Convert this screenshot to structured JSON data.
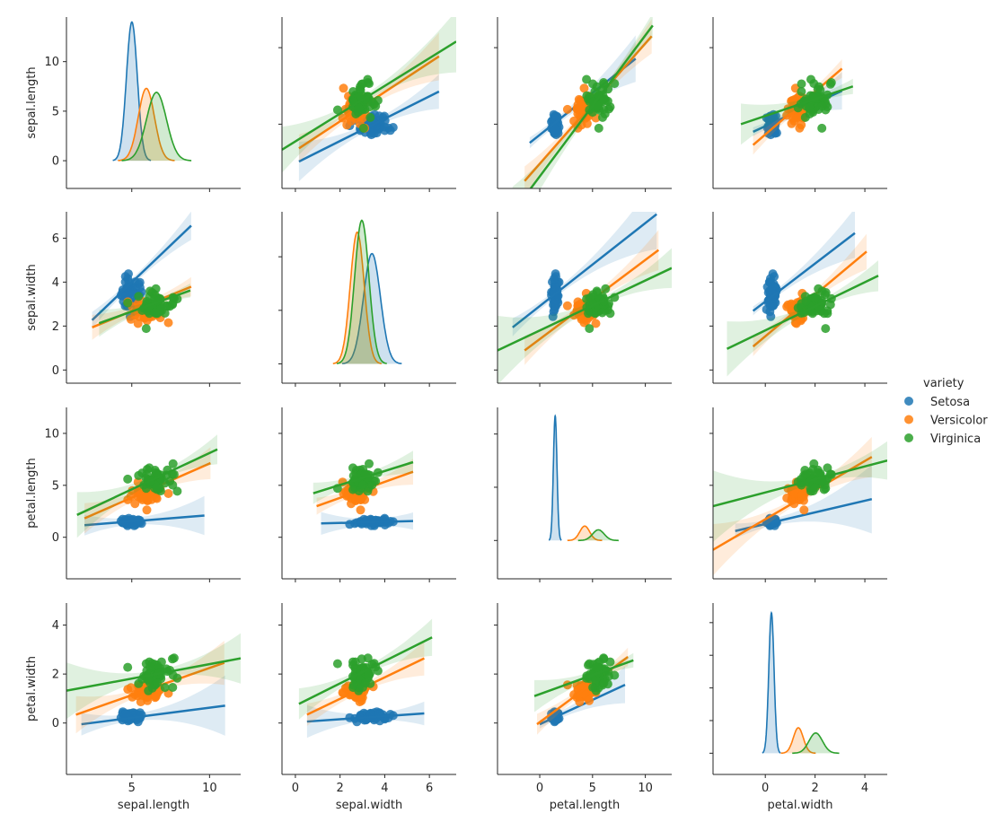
{
  "colors": {
    "Setosa": "#1f77b4",
    "Versicolor": "#ff7f0e",
    "Virginica": "#2ca02c",
    "axis": "#262626"
  },
  "chart_data": {
    "type": "scatter",
    "kind": "pairplot-regression",
    "variables": [
      "sepal.length",
      "sepal.width",
      "petal.length",
      "petal.width"
    ],
    "hue": "variety",
    "legend": {
      "title": "variety",
      "placement": "right",
      "entries": [
        "Setosa",
        "Versicolor",
        "Virginica"
      ]
    },
    "axes": {
      "sepal.length": {
        "lim": [
          0.8,
          12.0
        ],
        "ticks": [
          5,
          10
        ],
        "diag_ylim": [
          -2.8,
          14.5
        ],
        "diag_ticks": [
          0,
          5,
          10
        ]
      },
      "sepal.width": {
        "lim": [
          -0.6,
          7.2
        ],
        "ticks": [
          0,
          2,
          4,
          6
        ],
        "diag_ylim": [
          -1.8,
          14.2
        ],
        "diag_ticks": [
          0,
          5,
          10
        ]
      },
      "petal.length": {
        "lim": [
          -4.0,
          12.5
        ],
        "ticks": [
          0,
          5,
          10
        ],
        "diag_ylim": [
          -3.6,
          12.5
        ],
        "diag_ticks": [
          0,
          5,
          10
        ]
      },
      "petal.width": {
        "lim": [
          -2.1,
          4.9
        ],
        "ticks": [
          0,
          2,
          4
        ],
        "diag_ylim": [
          -0.65,
          4.6
        ],
        "diag_ticks": [
          0,
          1,
          2,
          3,
          4
        ]
      }
    },
    "species": [
      {
        "name": "Setosa",
        "mean": [
          5.006,
          3.428,
          1.462,
          0.246
        ],
        "std": [
          0.35,
          0.38,
          0.17,
          0.105
        ],
        "kde_peak": [
          14.0,
          10.3,
          11.7,
          4.3
        ]
      },
      {
        "name": "Versicolor",
        "mean": [
          5.936,
          2.77,
          4.26,
          1.326
        ],
        "std": [
          0.52,
          0.31,
          0.47,
          0.2
        ],
        "kde_peak": [
          7.3,
          12.3,
          1.35,
          0.78
        ]
      },
      {
        "name": "Virginica",
        "mean": [
          6.588,
          2.974,
          5.552,
          2.026
        ],
        "std": [
          0.64,
          0.32,
          0.55,
          0.27
        ],
        "kde_peak": [
          6.9,
          13.4,
          1.0,
          0.62
        ]
      }
    ],
    "regressions": [
      {
        "x": "sepal.width",
        "y": "sepal.length",
        "Setosa": [
          0.16,
          2.56,
          6.43,
          7.13
        ],
        "Versicolor": [
          0.16,
          3.42,
          6.43,
          9.43
        ],
        "Virginica": [
          -0.6,
          3.33,
          7.2,
          10.4
        ]
      },
      {
        "x": "petal.length",
        "y": "sepal.length",
        "Setosa": [
          -0.95,
          3.78,
          9.08,
          9.28
        ],
        "Versicolor": [
          -1.43,
          1.29,
          10.6,
          10.75
        ],
        "Virginica": [
          -2.57,
          -0.78,
          10.7,
          11.45
        ]
      },
      {
        "x": "petal.width",
        "y": "sepal.length",
        "Setosa": [
          -0.49,
          4.5,
          3.08,
          7.18
        ],
        "Versicolor": [
          -0.49,
          3.64,
          3.08,
          8.63
        ],
        "Virginica": [
          -0.98,
          5.0,
          3.52,
          7.47
        ]
      },
      {
        "x": "sepal.length",
        "y": "sepal.width",
        "Setosa": [
          2.45,
          2.27,
          8.82,
          6.57
        ],
        "Versicolor": [
          2.45,
          1.94,
          8.82,
          3.79
        ],
        "Virginica": [
          2.9,
          2.13,
          8.76,
          3.62
        ]
      },
      {
        "x": "petal.length",
        "y": "sepal.width",
        "Setosa": [
          -2.57,
          1.94,
          11.07,
          7.09
        ],
        "Versicolor": [
          -1.43,
          0.89,
          11.25,
          5.46
        ],
        "Virginica": [
          -4.0,
          0.89,
          12.5,
          4.64
        ]
      },
      {
        "x": "petal.width",
        "y": "sepal.width",
        "Setosa": [
          -0.49,
          2.69,
          3.6,
          6.23
        ],
        "Versicolor": [
          -0.49,
          1.07,
          4.07,
          5.39
        ],
        "Virginica": [
          -1.54,
          0.96,
          4.54,
          4.29
        ]
      },
      {
        "x": "sepal.length",
        "y": "petal.length",
        "Setosa": [
          1.96,
          1.16,
          9.67,
          2.09
        ],
        "Versicolor": [
          1.96,
          1.82,
          10.06,
          7.14
        ],
        "Virginica": [
          1.48,
          2.15,
          10.5,
          8.46
        ]
      },
      {
        "x": "sepal.width",
        "y": "petal.length",
        "Setosa": [
          1.15,
          1.33,
          5.27,
          1.56
        ],
        "Versicolor": [
          0.95,
          2.99,
          5.27,
          6.31
        ],
        "Virginica": [
          0.8,
          4.23,
          5.27,
          7.23
        ]
      },
      {
        "x": "petal.width",
        "y": "petal.length",
        "Setosa": [
          -1.21,
          0.6,
          4.28,
          3.67
        ],
        "Versicolor": [
          -2.1,
          -1.21,
          4.28,
          7.73
        ],
        "Virginica": [
          -2.1,
          2.99,
          4.9,
          7.39
        ]
      },
      {
        "x": "sepal.length",
        "y": "petal.width",
        "Setosa": [
          1.76,
          -0.05,
          11.0,
          0.71
        ],
        "Versicolor": [
          1.41,
          0.34,
          10.95,
          2.46
        ],
        "Virginica": [
          0.8,
          1.32,
          12.0,
          2.64
        ]
      },
      {
        "x": "sepal.width",
        "y": "petal.width",
        "Setosa": [
          0.52,
          0.06,
          5.77,
          0.39
        ],
        "Versicolor": [
          0.52,
          0.34,
          5.77,
          2.64
        ],
        "Virginica": [
          0.16,
          0.78,
          6.12,
          3.5
        ]
      },
      {
        "x": "petal.length",
        "y": "petal.width",
        "Setosa": [
          0.0,
          -0.05,
          8.08,
          1.56
        ],
        "Versicolor": [
          -0.26,
          -0.05,
          8.35,
          2.7
        ],
        "Virginica": [
          -0.51,
          1.1,
          8.87,
          2.56
        ]
      }
    ]
  }
}
